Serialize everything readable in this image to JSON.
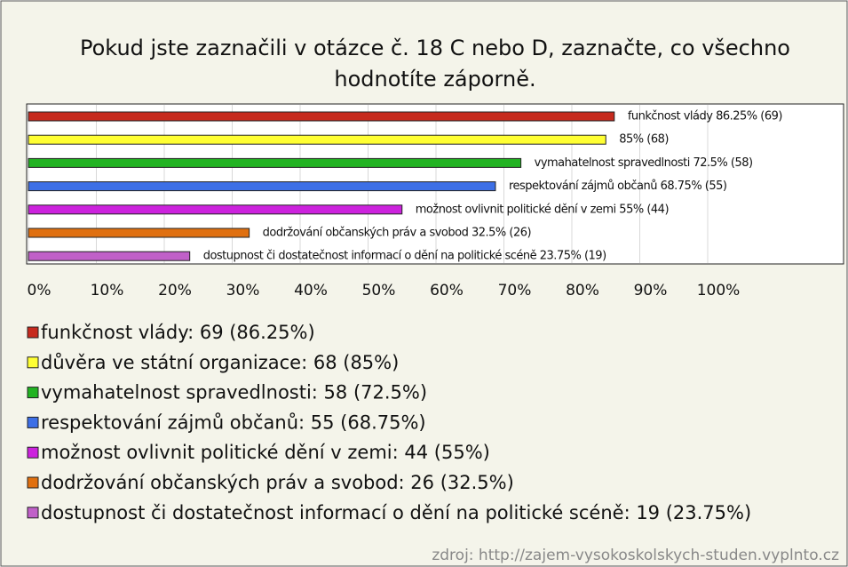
{
  "chart_data": {
    "type": "hbar",
    "title": [
      "Pokud jste zaznačili v otázce č. 18 C nebo D, zaznačte, co všechno",
      "hodnotíte záporně."
    ],
    "categories": [
      "funkčnost vlády",
      "důvěra ve státní organizace",
      "vymahatelnost spravedlnosti",
      "respektování zájmů občanů",
      "možnost ovlivnit politické dění v zemi",
      "dodržování občanských práv a svobod",
      "dostupnost či dostatečnost informací o dění na politické scéně"
    ],
    "values": [
      86.25,
      85,
      72.5,
      68.75,
      55,
      32.5,
      23.75
    ],
    "value_labels": [
      "funkčnost vlády 86.25% (69)",
      "85% (68)",
      "vymahatelnost spravedlnosti 72.5% (58)",
      "respektování zájmů občanů 68.75% (55)",
      "možnost ovlivnit politické dění v zemi 55% (44)",
      "dodržování občanských práv a svobod 32.5% (26)",
      "dostupnost či dostatečnost informací o dění na politické scéně 23.75% (19)"
    ],
    "legend": [
      "funkčnost vlády: 69 (86.25%)",
      "důvěra ve státní organizace: 68 (85%)",
      "vymahatelnost spravedlnosti: 58 (72.5%)",
      "respektování zájmů občanů: 55 (68.75%)",
      "možnost ovlivnit politické dění v zemi: 44 (55%)",
      "dodržování občanských práv a svobod: 26 (32.5%)",
      "dostupnost či dostatečnost informací o dění na politické scéně: 19 (23.75%)"
    ],
    "colors": [
      "#c62a1e",
      "#ffff33",
      "#22b322",
      "#3d6fe6",
      "#cc22dd",
      "#e07010",
      "#c060c8"
    ],
    "xlim": [
      0,
      100
    ],
    "xticks": [
      {
        "value": 0,
        "label": "0%"
      },
      {
        "value": 10,
        "label": "10%"
      },
      {
        "value": 20,
        "label": "20%"
      },
      {
        "value": 30,
        "label": "30%"
      },
      {
        "value": 40,
        "label": "40%"
      },
      {
        "value": 50,
        "label": "50%"
      },
      {
        "value": 60,
        "label": "60%"
      },
      {
        "value": 70,
        "label": "70%"
      },
      {
        "value": 80,
        "label": "80%"
      },
      {
        "value": 90,
        "label": "90%"
      },
      {
        "value": 100,
        "label": "100%"
      }
    ],
    "grid": true,
    "source": "zdroj: http://zajem-vysokoskolskych-studen.vyplnto.cz"
  }
}
